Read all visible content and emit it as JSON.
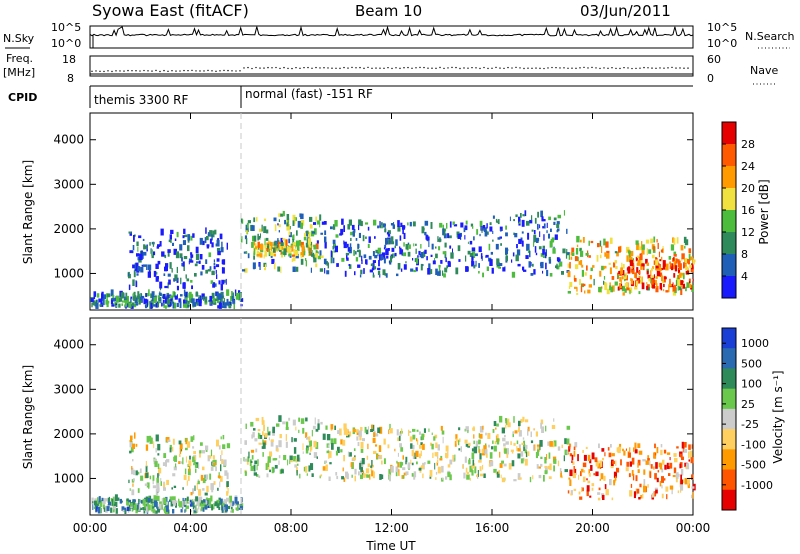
{
  "header": {
    "station": "Syowa East (fitACF)",
    "beam": "Beam 10",
    "date": "03/Jun/2011"
  },
  "panels": {
    "nsky": {
      "left_label": "N.Sky",
      "right_label": "N.Search",
      "tick_hi": "10^5",
      "tick_lo": "10^0",
      "right_tick_hi": "10^5",
      "right_tick_lo": "10^0"
    },
    "freq": {
      "left_label_1": "Freq.",
      "left_label_2": "[MHz]",
      "tick_hi": "18",
      "tick_lo": "8",
      "right_label": "Nave",
      "right_tick_hi": "60",
      "right_tick_lo": "0"
    },
    "cpid": {
      "left_label": "CPID",
      "mode_1": "themis 3300 RF",
      "mode_2": "normal (fast) -151 RF"
    }
  },
  "chart_data": [
    {
      "type": "heatmap",
      "title": "Power",
      "ylabel": "Slant Range [km]",
      "xlabel": "",
      "ylim": [
        180,
        4600
      ],
      "yticks": [
        "1000",
        "2000",
        "3000",
        "4000"
      ],
      "colorbar": {
        "label": "Power [dB]",
        "ticks": [
          "4",
          "8",
          "12",
          "16",
          "20",
          "24",
          "28"
        ],
        "colors": [
          "#1a1aff",
          "#1f5fb8",
          "#2e8a5a",
          "#4cbc3c",
          "#f0e040",
          "#ff9a00",
          "#ff5a00",
          "#e60000"
        ]
      },
      "echo_regions": [
        {
          "t0": 0.0,
          "t1": 6.0,
          "r0": 200,
          "r1": 500,
          "level": 0.25
        },
        {
          "t0": 1.5,
          "t1": 5.5,
          "r0": 600,
          "r1": 1900,
          "level": 0.15
        },
        {
          "t0": 6.0,
          "t1": 9.2,
          "r0": 1000,
          "r1": 2300,
          "level": 0.35
        },
        {
          "t0": 6.5,
          "t1": 9.0,
          "r0": 1350,
          "r1": 1650,
          "level": 0.55
        },
        {
          "t0": 9.2,
          "t1": 16.0,
          "r0": 900,
          "r1": 2100,
          "level": 0.2
        },
        {
          "t0": 16.0,
          "t1": 19.0,
          "r0": 900,
          "r1": 2300,
          "level": 0.25
        },
        {
          "t0": 19.0,
          "t1": 24.0,
          "r0": 500,
          "r1": 1700,
          "level": 0.6
        },
        {
          "t0": 21.0,
          "t1": 24.0,
          "r0": 600,
          "r1": 1300,
          "level": 0.8
        }
      ]
    },
    {
      "type": "heatmap",
      "title": "Velocity",
      "ylabel": "Slant Range [km]",
      "xlabel": "Time UT",
      "ylim": [
        180,
        4600
      ],
      "yticks": [
        "1000",
        "2000",
        "3000",
        "4000"
      ],
      "xticks": [
        "00:00",
        "04:00",
        "08:00",
        "12:00",
        "16:00",
        "20:00",
        "00:00"
      ],
      "colorbar": {
        "label": "Velocity [m s⁻¹]",
        "ticks": [
          "1000",
          "500",
          "100",
          "25",
          "-25",
          "-100",
          "-500",
          "-1000"
        ],
        "colors": [
          "#1a3fd6",
          "#2a6ab0",
          "#2f8a5a",
          "#6ac84c",
          "#cccccc",
          "#ffd060",
          "#ff9a00",
          "#ff5500",
          "#e60000"
        ]
      },
      "echo_regions": [
        {
          "t0": 0.0,
          "t1": 6.0,
          "r0": 200,
          "r1": 500,
          "level": 0.3
        },
        {
          "t0": 1.5,
          "t1": 5.5,
          "r0": 600,
          "r1": 1900,
          "level": 0.5
        },
        {
          "t0": 6.0,
          "t1": 9.2,
          "r0": 1000,
          "r1": 2300,
          "level": 0.45
        },
        {
          "t0": 9.2,
          "t1": 16.0,
          "r0": 900,
          "r1": 2100,
          "level": 0.5
        },
        {
          "t0": 16.0,
          "t1": 19.0,
          "r0": 900,
          "r1": 2300,
          "level": 0.5
        },
        {
          "t0": 19.0,
          "t1": 24.0,
          "r0": 500,
          "r1": 1700,
          "level": 0.75
        }
      ]
    }
  ]
}
